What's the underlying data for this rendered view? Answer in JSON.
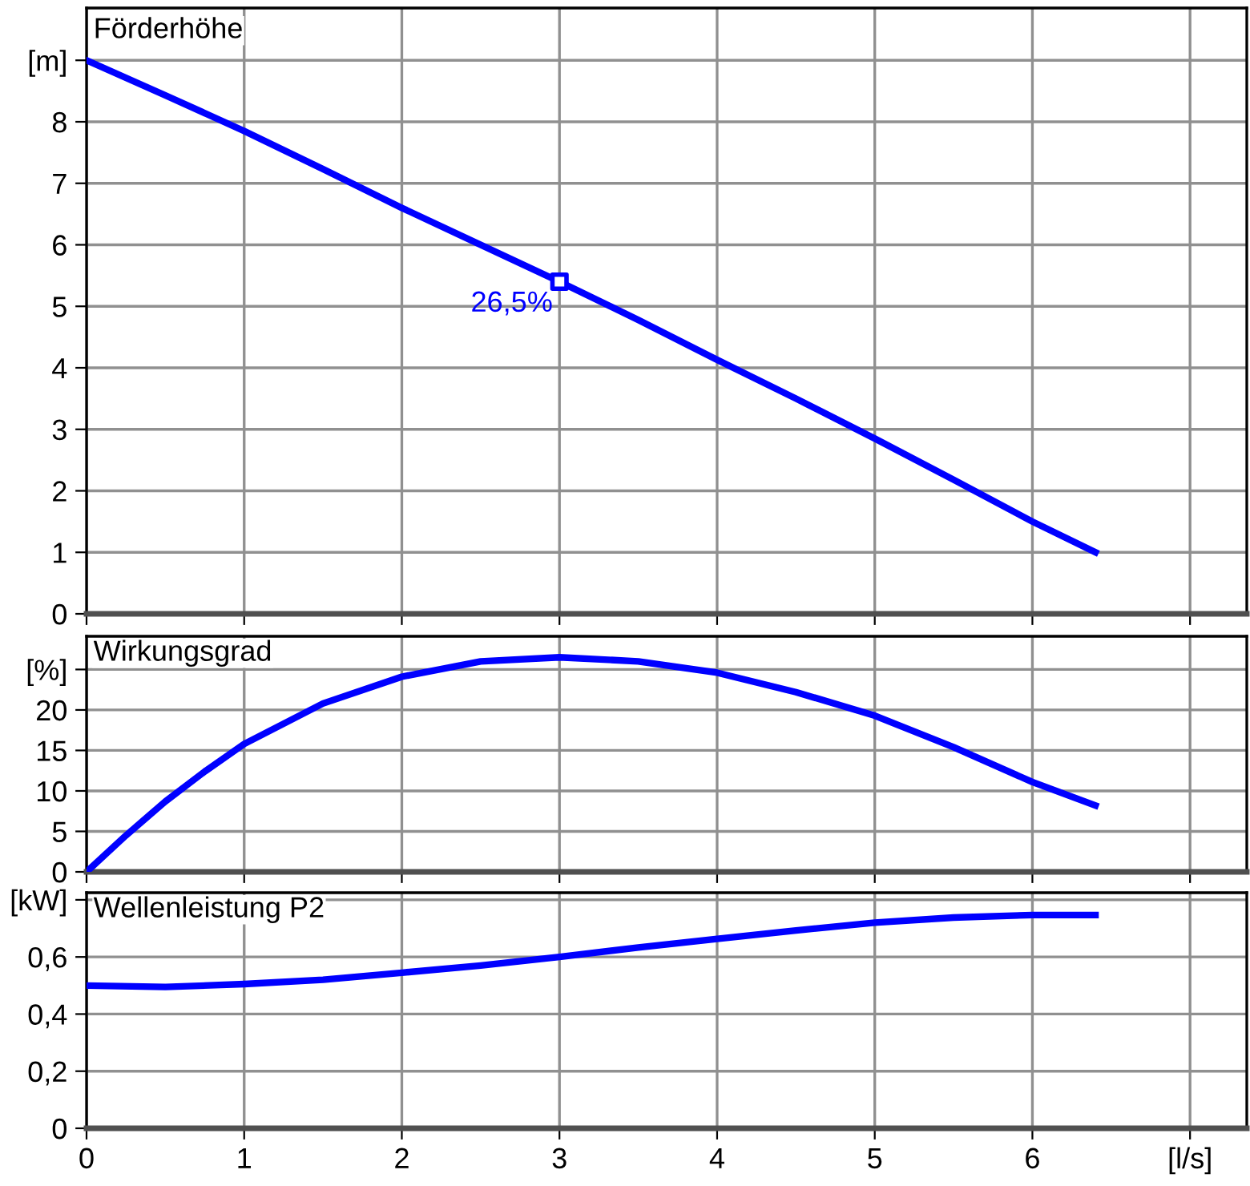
{
  "chart_data": [
    {
      "type": "line",
      "title": "Förderhöhe",
      "x": [
        0,
        0.5,
        1,
        1.5,
        2,
        2.5,
        3,
        3.5,
        4,
        4.5,
        5,
        5.5,
        6,
        6.4
      ],
      "series": [
        {
          "color": "#0000ff",
          "values": [
            9.0,
            8.43,
            7.85,
            7.23,
            6.6,
            6.0,
            5.4,
            4.78,
            4.13,
            3.5,
            2.85,
            2.18,
            1.5,
            1.0
          ]
        },
        {
          "type": "scatter",
          "marker": "square",
          "color": "#0000ff",
          "x": [
            3
          ],
          "values": [
            5.4
          ]
        }
      ],
      "annotations": [
        {
          "text": "26,5%",
          "x": 3,
          "y": 5.4
        }
      ],
      "xlim": [
        0,
        7.36
      ],
      "xticks": [
        0,
        1,
        2,
        3,
        4,
        5,
        6,
        7
      ],
      "ylim": [
        0,
        9.85
      ],
      "yticks": [
        0,
        1,
        2,
        3,
        4,
        5,
        6,
        7,
        8,
        {
          "value": 9,
          "label": "[m]"
        }
      ],
      "tick_labels": "y",
      "grid": true
    },
    {
      "type": "line",
      "title": "Wirkungsgrad",
      "x": [
        0,
        0.25,
        0.5,
        0.75,
        1,
        1.5,
        2,
        2.5,
        3,
        3.5,
        4,
        4.5,
        5,
        5.5,
        6,
        6.4
      ],
      "series": [
        {
          "color": "#0000ff",
          "values": [
            0,
            4.5,
            8.7,
            12.4,
            15.8,
            20.8,
            24.1,
            26,
            26.5,
            26,
            24.6,
            22.2,
            19.3,
            15.4,
            11.1,
            8.2
          ]
        }
      ],
      "xlim": [
        0,
        7.36
      ],
      "xticks": [
        0,
        1,
        2,
        3,
        4,
        5,
        6,
        7
      ],
      "ylim": [
        0,
        29.1
      ],
      "yticks": [
        0,
        5,
        10,
        15,
        20,
        {
          "value": 25,
          "label": "[%]"
        }
      ],
      "tick_labels": "y",
      "grid": true
    },
    {
      "type": "line",
      "title": "Wellenleistung P2",
      "x": [
        0,
        0.5,
        1,
        1.5,
        2,
        2.5,
        3,
        3.5,
        4,
        4.5,
        5,
        5.5,
        6,
        6.4
      ],
      "series": [
        {
          "color": "#0000ff",
          "values": [
            0.5,
            0.495,
            0.505,
            0.52,
            0.545,
            0.57,
            0.6,
            0.633,
            0.663,
            0.693,
            0.72,
            0.738,
            0.747,
            0.747
          ]
        }
      ],
      "xlim": [
        0,
        7.36
      ],
      "xticks": [
        0,
        1,
        2,
        3,
        4,
        5,
        6,
        {
          "value": 7,
          "label": "[l/s]"
        }
      ],
      "ylim": [
        0,
        0.825
      ],
      "yticks": [
        0,
        {
          "value": 0.2,
          "label": "0,2"
        },
        {
          "value": 0.4,
          "label": "0,4"
        },
        {
          "value": 0.6,
          "label": "0,6"
        },
        {
          "value": 0.8,
          "label": "[kW]"
        }
      ],
      "grid": true
    }
  ]
}
